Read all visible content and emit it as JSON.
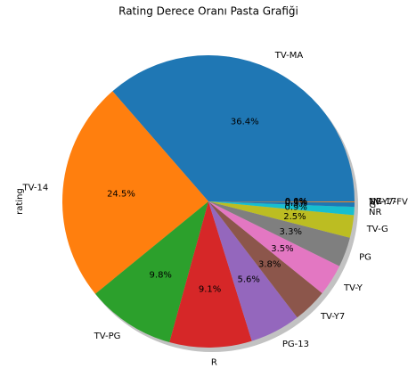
{
  "chart_data": {
    "type": "pie",
    "title": "Rating Derece Oranı Pasta Grafiği",
    "ylabel": "rating",
    "categories": [
      "TV-MA",
      "TV-14",
      "TV-PG",
      "R",
      "PG-13",
      "TV-Y7",
      "TV-Y",
      "PG",
      "TV-G",
      "NR",
      "G",
      "TV-Y7-FV",
      "NC-17",
      "UR"
    ],
    "values": [
      36.4,
      24.5,
      9.8,
      9.1,
      5.6,
      3.8,
      3.5,
      3.3,
      2.5,
      0.9,
      0.5,
      0.1,
      0.0,
      0.0
    ],
    "value_labels": [
      "36.4%",
      "24.5%",
      "9.8%",
      "9.1%",
      "5.6%",
      "3.8%",
      "3.5%",
      "3.3%",
      "2.5%",
      "0.9%",
      "0.5%",
      "0.1%",
      "0.0%",
      "0.0%"
    ],
    "colors": [
      "#1f77b4",
      "#ff7f0e",
      "#2ca02c",
      "#d62728",
      "#9467bd",
      "#8c564b",
      "#e377c2",
      "#7f7f7f",
      "#bcbd22",
      "#17becf",
      "#1f77b4",
      "#ff7f0e",
      "#2ca02c",
      "#d62728"
    ],
    "start_angle": 0,
    "shadow": true
  }
}
